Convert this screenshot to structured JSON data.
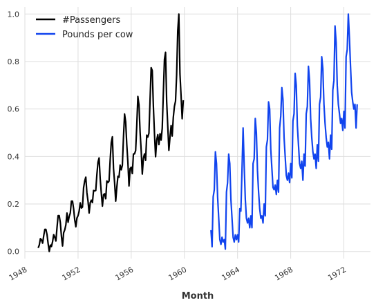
{
  "chart_data": {
    "type": "line",
    "xlabel": "Month",
    "ylabel": "",
    "xlim": [
      1948.0,
      1974.0
    ],
    "ylim": [
      -0.03,
      1.03
    ],
    "x_ticks": [
      1948,
      1952,
      1956,
      1960,
      1964,
      1968,
      1972
    ],
    "x_tick_labels": [
      "1948",
      "1952",
      "1956",
      "1960",
      "1964",
      "1968",
      "1972"
    ],
    "y_ticks": [
      0.0,
      0.2,
      0.4,
      0.6,
      0.8,
      1.0
    ],
    "y_tick_labels": [
      "0.0",
      "0.2",
      "0.4",
      "0.6",
      "0.8",
      "1.0"
    ],
    "grid": true,
    "legend_position": "top-left",
    "series": [
      {
        "name": "#Passengers",
        "color": "#000000",
        "start": 1949.0,
        "values": [
          0.015,
          0.027,
          0.054,
          0.049,
          0.035,
          0.066,
          0.093,
          0.093,
          0.071,
          0.033,
          0.0,
          0.027,
          0.021,
          0.041,
          0.071,
          0.06,
          0.044,
          0.1,
          0.151,
          0.151,
          0.122,
          0.064,
          0.023,
          0.079,
          0.091,
          0.112,
          0.162,
          0.123,
          0.147,
          0.162,
          0.212,
          0.212,
          0.18,
          0.133,
          0.104,
          0.141,
          0.151,
          0.17,
          0.205,
          0.183,
          0.187,
          0.268,
          0.297,
          0.313,
          0.247,
          0.212,
          0.162,
          0.206,
          0.216,
          0.206,
          0.257,
          0.255,
          0.257,
          0.324,
          0.376,
          0.394,
          0.307,
          0.245,
          0.191,
          0.239,
          0.243,
          0.222,
          0.297,
          0.29,
          0.297,
          0.386,
          0.459,
          0.483,
          0.351,
          0.29,
          0.212,
          0.27,
          0.317,
          0.313,
          0.364,
          0.344,
          0.363,
          0.479,
          0.579,
          0.546,
          0.45,
          0.375,
          0.276,
          0.349,
          0.355,
          0.328,
          0.411,
          0.411,
          0.425,
          0.529,
          0.653,
          0.618,
          0.504,
          0.425,
          0.326,
          0.393,
          0.411,
          0.384,
          0.49,
          0.482,
          0.498,
          0.638,
          0.774,
          0.762,
          0.612,
          0.496,
          0.399,
          0.469,
          0.492,
          0.45,
          0.496,
          0.469,
          0.519,
          0.666,
          0.809,
          0.839,
          0.632,
          0.527,
          0.426,
          0.481,
          0.53,
          0.486,
          0.565,
          0.611,
          0.633,
          0.743,
          0.929,
          1.0,
          0.749,
          0.656,
          0.559,
          0.637
        ]
      },
      {
        "name": "Pounds per cow",
        "color": "#1144ee",
        "start": 1962.0,
        "values": [
          0.09,
          0.02,
          0.23,
          0.26,
          0.42,
          0.37,
          0.23,
          0.14,
          0.05,
          0.03,
          0.06,
          0.04,
          0.05,
          0.01,
          0.25,
          0.29,
          0.41,
          0.37,
          0.22,
          0.14,
          0.06,
          0.04,
          0.07,
          0.05,
          0.07,
          0.04,
          0.18,
          0.17,
          0.34,
          0.52,
          0.36,
          0.22,
          0.14,
          0.12,
          0.14,
          0.1,
          0.15,
          0.1,
          0.37,
          0.39,
          0.56,
          0.5,
          0.34,
          0.25,
          0.18,
          0.14,
          0.15,
          0.12,
          0.2,
          0.15,
          0.44,
          0.47,
          0.63,
          0.6,
          0.43,
          0.35,
          0.27,
          0.26,
          0.28,
          0.24,
          0.3,
          0.25,
          0.52,
          0.57,
          0.69,
          0.64,
          0.48,
          0.4,
          0.32,
          0.3,
          0.33,
          0.29,
          0.37,
          0.31,
          0.55,
          0.58,
          0.75,
          0.7,
          0.53,
          0.45,
          0.37,
          0.35,
          0.38,
          0.3,
          0.41,
          0.36,
          0.58,
          0.61,
          0.78,
          0.72,
          0.56,
          0.48,
          0.42,
          0.39,
          0.41,
          0.35,
          0.45,
          0.38,
          0.62,
          0.65,
          0.82,
          0.77,
          0.62,
          0.54,
          0.48,
          0.44,
          0.46,
          0.39,
          0.49,
          0.43,
          0.68,
          0.72,
          0.95,
          0.88,
          0.7,
          0.62,
          0.58,
          0.54,
          0.56,
          0.51,
          0.59,
          0.52,
          0.82,
          0.85,
          1.0,
          0.9,
          0.78,
          0.67,
          0.63,
          0.6,
          0.62,
          0.52,
          0.62
        ]
      }
    ]
  }
}
